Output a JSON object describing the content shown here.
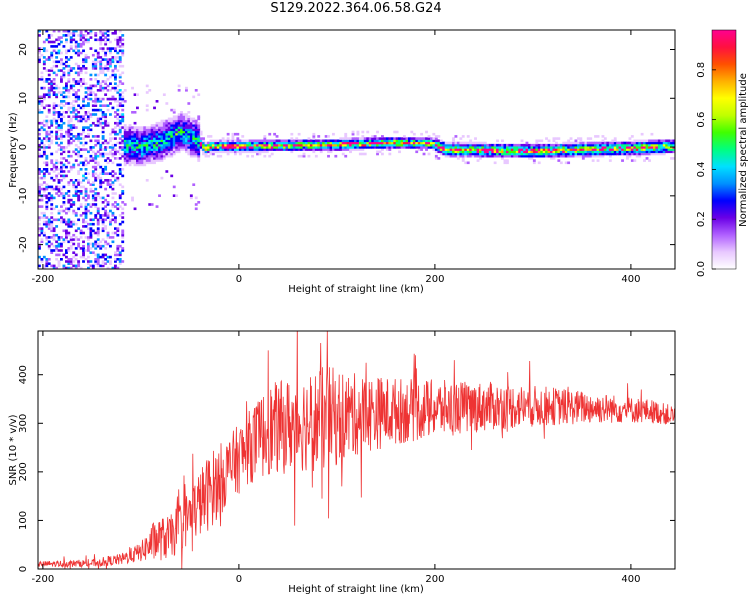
{
  "title": "S129.2022.364.06.58.G24",
  "chart_data": [
    {
      "type": "heatmap",
      "xlabel": "Height of straight line (km)",
      "ylabel": "Frequency (Hz)",
      "xlim": [
        -205,
        445
      ],
      "ylim": [
        -25,
        24
      ],
      "xticks": [
        -200,
        0,
        200,
        400
      ],
      "yticks": [
        -20,
        -10,
        0,
        10,
        20
      ],
      "grid": false,
      "colorbar": {
        "label": "Normalized spectral amplitude",
        "range": [
          0,
          0.96
        ],
        "ticks": [
          0.0,
          0.2,
          0.4,
          0.6,
          0.8
        ],
        "colors": [
          "#ffffff",
          "#e8c8ff",
          "#b060ff",
          "#6a00e6",
          "#0000ff",
          "#0090ff",
          "#00e0ff",
          "#00ff80",
          "#40ff00",
          "#c0ff00",
          "#ffff00",
          "#ffb000",
          "#ff5000",
          "#ff1040",
          "#ff0090"
        ]
      },
      "ridge": [
        {
          "x": -140,
          "y": 0.5
        },
        {
          "x": -100,
          "y": 0.0
        },
        {
          "x": -80,
          "y": 1.0
        },
        {
          "x": -60,
          "y": 3.0
        },
        {
          "x": -45,
          "y": 1.5
        },
        {
          "x": -35,
          "y": -0.5
        },
        {
          "x": -30,
          "y": 0.0
        },
        {
          "x": 0,
          "y": 0.0
        },
        {
          "x": 100,
          "y": 0.3
        },
        {
          "x": 150,
          "y": 0.7
        },
        {
          "x": 195,
          "y": 0.6
        },
        {
          "x": 210,
          "y": -0.7
        },
        {
          "x": 300,
          "y": -1.0
        },
        {
          "x": 400,
          "y": -0.4
        },
        {
          "x": 445,
          "y": 0.0
        }
      ]
    },
    {
      "type": "line",
      "xlabel": "Height of straight line (km)",
      "ylabel": "SNR (10 * v/v)",
      "xlim": [
        -205,
        445
      ],
      "ylim": [
        0,
        490
      ],
      "xticks": [
        -200,
        0,
        200,
        400
      ],
      "yticks": [
        0,
        100,
        200,
        300,
        400
      ],
      "grid": false,
      "series": [
        {
          "color": "#ee3333",
          "envelope": [
            {
              "x": -205,
              "mean": 10,
              "spread": 6
            },
            {
              "x": -150,
              "mean": 12,
              "spread": 8
            },
            {
              "x": -120,
              "mean": 20,
              "spread": 12
            },
            {
              "x": -100,
              "mean": 35,
              "spread": 20
            },
            {
              "x": -85,
              "mean": 60,
              "spread": 45
            },
            {
              "x": -70,
              "mean": 65,
              "spread": 45
            },
            {
              "x": -50,
              "mean": 110,
              "spread": 60
            },
            {
              "x": -30,
              "mean": 160,
              "spread": 80
            },
            {
              "x": -10,
              "mean": 205,
              "spread": 70
            },
            {
              "x": 10,
              "mean": 250,
              "spread": 75
            },
            {
              "x": 30,
              "mean": 285,
              "spread": 95
            },
            {
              "x": 60,
              "mean": 300,
              "spread": 100
            },
            {
              "x": 90,
              "mean": 310,
              "spread": 110
            },
            {
              "x": 120,
              "mean": 318,
              "spread": 85
            },
            {
              "x": 160,
              "mean": 325,
              "spread": 70
            },
            {
              "x": 200,
              "mean": 330,
              "spread": 60
            },
            {
              "x": 260,
              "mean": 335,
              "spread": 50
            },
            {
              "x": 320,
              "mean": 335,
              "spread": 40
            },
            {
              "x": 380,
              "mean": 330,
              "spread": 30
            },
            {
              "x": 420,
              "mean": 325,
              "spread": 25
            },
            {
              "x": 445,
              "mean": 315,
              "spread": 20
            }
          ],
          "peaks": [
            {
              "x": 30,
              "y": 450
            },
            {
              "x": 90,
              "y": 490
            },
            {
              "x": 85,
              "y": 145
            },
            {
              "x": 105,
              "y": 170
            },
            {
              "x": 180,
              "y": 440
            },
            {
              "x": 220,
              "y": 430
            }
          ]
        }
      ]
    }
  ]
}
